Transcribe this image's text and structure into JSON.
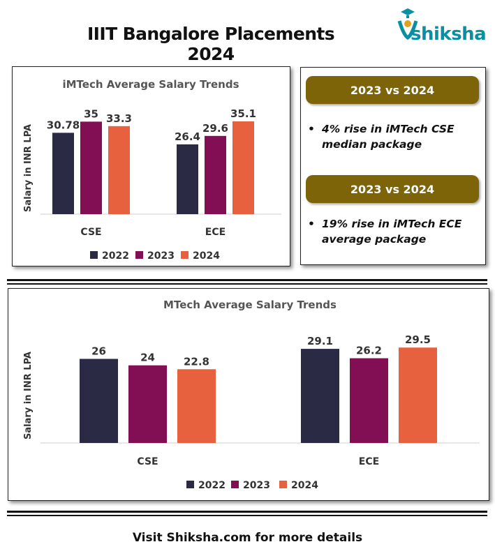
{
  "header": {
    "title": "IIIT Bangalore Placements 2024",
    "logo_text": "shiksha"
  },
  "colors": {
    "series": [
      "#2a2a45",
      "#820f53",
      "#e8613e"
    ],
    "banner": "#7e6408",
    "logo": "#0a8ea2"
  },
  "chart_data": [
    {
      "type": "bar",
      "title": "iMTech Average Salary Trends",
      "ylabel": "Salary in INR LPA",
      "categories": [
        "CSE",
        "ECE"
      ],
      "series": [
        {
          "name": "2022",
          "values": [
            30.78,
            26.4
          ]
        },
        {
          "name": "2023",
          "values": [
            35,
            29.6
          ]
        },
        {
          "name": "2024",
          "values": [
            33.3,
            35.1
          ]
        }
      ],
      "ylim": [
        0,
        38
      ],
      "grid": false,
      "legend": "bottom"
    },
    {
      "type": "bar",
      "title": "MTech Average Salary Trends",
      "ylabel": "Salary in INR LPA",
      "categories": [
        "CSE",
        "ECE"
      ],
      "series": [
        {
          "name": "2022",
          "values": [
            26,
            29.1
          ]
        },
        {
          "name": "2023",
          "values": [
            24,
            26.2
          ]
        },
        {
          "name": "2024",
          "values": [
            22.8,
            29.5
          ]
        }
      ],
      "ylim": [
        0,
        33
      ],
      "grid": false,
      "legend": "bottom"
    }
  ],
  "comparisons": [
    {
      "heading": "2023 vs 2024",
      "text": "4% rise in iMTech CSE median package"
    },
    {
      "heading": "2023 vs 2024",
      "text": "19% rise in iMTech ECE average package"
    }
  ],
  "bullet_symbol": "•",
  "footer": {
    "text": "Visit Shiksha.com for more details"
  }
}
